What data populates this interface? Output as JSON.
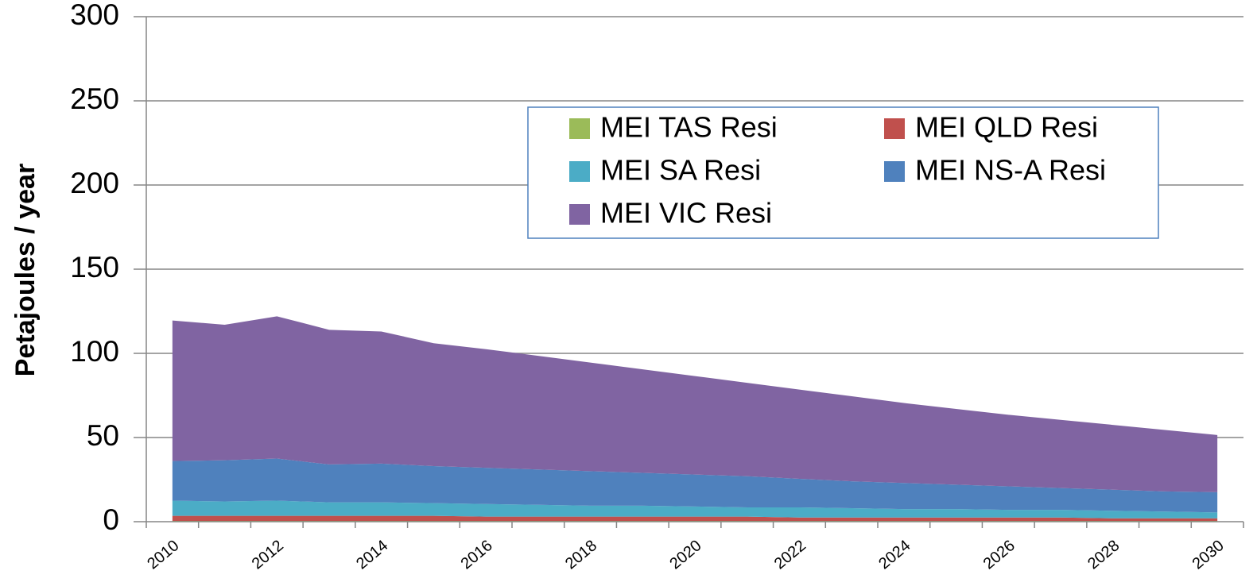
{
  "chart_data": {
    "type": "area",
    "stacked": true,
    "y_label": "Petajoules / year",
    "categories": [
      "2010",
      null,
      "2012",
      null,
      "2014",
      null,
      "2016",
      null,
      "2018",
      null,
      "2020",
      null,
      "2022",
      null,
      "2024",
      null,
      "2026",
      null,
      "2028",
      null,
      "2030"
    ],
    "series": [
      {
        "name": "MEI TAS Resi",
        "color": "#9bbb59",
        "values": [
          0.5,
          0.5,
          0.5,
          0.5,
          0.5,
          0.5,
          0.5,
          0.5,
          0.5,
          0.5,
          0.5,
          0.5,
          0.5,
          0.5,
          0.5,
          0.5,
          0.5,
          0.5,
          0.5,
          0.5,
          0.5
        ]
      },
      {
        "name": "MEI QLD Resi",
        "color": "#c0504d",
        "values": [
          3,
          3,
          3,
          3,
          3,
          3,
          2.5,
          2.5,
          2.5,
          2.5,
          2.5,
          2.5,
          2,
          2,
          2,
          2,
          2,
          2,
          1.5,
          1.5,
          1.5
        ]
      },
      {
        "name": "MEI SA Resi",
        "color": "#4bacc6",
        "values": [
          9,
          8.5,
          9,
          8,
          8,
          7.5,
          7.5,
          7,
          6.5,
          6.5,
          6,
          5.5,
          6,
          5.5,
          5,
          5,
          4.5,
          4.5,
          4.5,
          4,
          3.5
        ]
      },
      {
        "name": "MEI NS-A Resi",
        "color": "#4f81bd",
        "values": [
          23.5,
          24.5,
          25,
          22.5,
          23,
          22,
          21.5,
          21,
          20.5,
          19.5,
          19,
          18.5,
          17,
          16,
          15.5,
          14.5,
          14,
          13,
          12.5,
          12,
          12
        ]
      },
      {
        "name": "MEI VIC Resi",
        "color": "#8064a2",
        "values": [
          83.5,
          80.5,
          84.5,
          80,
          78.5,
          73,
          70.5,
          67.5,
          64.5,
          61.5,
          58.5,
          55.5,
          53,
          50.5,
          47.5,
          45,
          42.5,
          40.5,
          38.5,
          36.5,
          34
        ]
      }
    ],
    "ylim": [
      0,
      300
    ],
    "yticks": [
      0,
      50,
      100,
      150,
      200,
      250,
      300
    ],
    "grid": true
  }
}
